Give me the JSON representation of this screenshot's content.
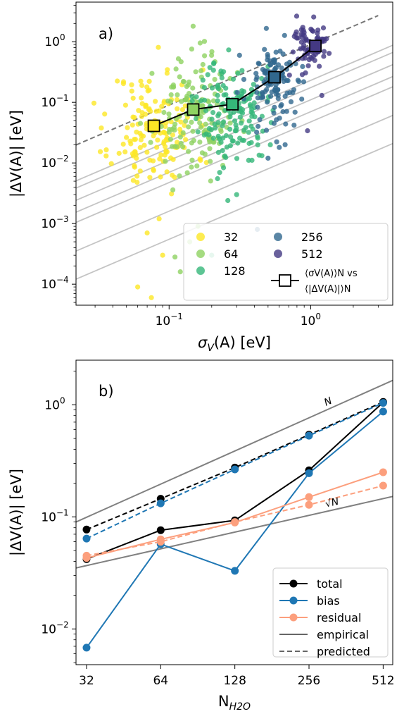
{
  "chart_data": [
    {
      "panel_label": "a)",
      "type": "scatter",
      "xlabel_parts": [
        "σ",
        "V",
        "(A) [eV]"
      ],
      "ylabel": "|ΔV(A)| [eV]",
      "xscale": "log",
      "yscale": "log",
      "xlim": [
        0.022,
        3.8
      ],
      "ylim": [
        4.5e-05,
        4.5
      ],
      "x_ticks": [
        {
          "value": 0.1,
          "base": "10",
          "exp": "−1"
        },
        {
          "value": 1,
          "base": "10",
          "exp": "0"
        }
      ],
      "y_ticks": [
        {
          "value": 0.0001,
          "base": "10",
          "exp": "−4"
        },
        {
          "value": 0.001,
          "base": "10",
          "exp": "−3"
        },
        {
          "value": 0.01,
          "base": "10",
          "exp": "−2"
        },
        {
          "value": 0.1,
          "base": "10",
          "exp": "−1"
        },
        {
          "value": 1,
          "base": "10",
          "exp": "0"
        }
      ],
      "grid": false,
      "reference_lines": {
        "color": "#c4c4c4",
        "slope": 1,
        "coefficients": [
          0.0055,
          0.016,
          0.0475,
          0.07,
          0.11,
          0.175,
          0.23
        ]
      },
      "predicted_line": {
        "color": "#777777",
        "dash": true,
        "coefficient": 0.9,
        "x_range": [
          0.022,
          3.0
        ]
      },
      "series": [
        {
          "name": "32",
          "color": "#fde725",
          "x_mean": 0.078,
          "x_spread": 0.15,
          "y_median": 0.035,
          "y_spread": 0.5,
          "count": 150,
          "seed": 11,
          "outliers": [
            [
              0.06,
              9e-05
            ],
            [
              0.075,
              6e-05
            ],
            [
              0.09,
              0.0003
            ],
            [
              0.07,
              0.0007
            ],
            [
              0.085,
              0.0012
            ]
          ]
        },
        {
          "name": "64",
          "color": "#8fd262",
          "x_mean": 0.15,
          "x_spread": 0.14,
          "y_median": 0.06,
          "y_spread": 0.48,
          "count": 150,
          "seed": 23,
          "outliers": [
            [
              0.12,
              0.00016
            ],
            [
              0.11,
              0.00028
            ],
            [
              0.14,
              0.0005
            ],
            [
              0.16,
              0.0009
            ]
          ]
        },
        {
          "name": "128",
          "color": "#35b779",
          "x_mean": 0.28,
          "x_spread": 0.12,
          "y_median": 0.07,
          "y_spread": 0.42,
          "count": 150,
          "seed": 37,
          "outliers": [
            [
              0.2,
              0.0003
            ],
            [
              0.26,
              0.0024
            ],
            [
              0.3,
              0.003
            ],
            [
              0.22,
              0.0055
            ]
          ]
        },
        {
          "name": "256",
          "color": "#31688e",
          "x_mean": 0.56,
          "x_spread": 0.1,
          "y_median": 0.22,
          "y_spread": 0.35,
          "count": 120,
          "seed": 53,
          "outliers": [
            [
              0.42,
              0.0008
            ],
            [
              0.5,
              0.012
            ],
            [
              0.6,
              0.018
            ],
            [
              0.66,
              0.02
            ]
          ]
        },
        {
          "name": "512",
          "color": "#443983",
          "x_mean": 1.0,
          "x_spread": 0.07,
          "y_median": 0.8,
          "y_spread": 0.22,
          "count": 80,
          "seed": 71,
          "outliers": [
            [
              0.95,
              0.034
            ],
            [
              1.2,
              0.13
            ]
          ]
        }
      ],
      "mean_series": {
        "name_line1": "⟨σV(A)⟩N vs",
        "name_line2": "⟨|ΔV(A)|⟩N",
        "x": [
          0.078,
          0.148,
          0.28,
          0.555,
          1.08
        ],
        "y": [
          0.041,
          0.076,
          0.093,
          0.26,
          0.85
        ]
      },
      "legend_position": "lower-right"
    },
    {
      "panel_label": "b)",
      "type": "line",
      "xlabel_parts": [
        "N",
        "H2O"
      ],
      "ylabel": "|ΔV(A)| [eV]",
      "xscale": "log",
      "yscale": "log",
      "xlim": [
        29,
        560
      ],
      "ylim": [
        0.0048,
        2.5
      ],
      "categories": [
        "32",
        "64",
        "128",
        "256",
        "512"
      ],
      "x": [
        32,
        64,
        128,
        256,
        512
      ],
      "y_ticks": [
        {
          "value": 0.01,
          "base": "10",
          "exp": "−2"
        },
        {
          "value": 0.1,
          "base": "10",
          "exp": "−1"
        },
        {
          "value": 1,
          "base": "10",
          "exp": "0"
        }
      ],
      "grid": false,
      "series": [
        {
          "name": "total",
          "color": "#000000",
          "kind": "empirical",
          "values": [
            0.042,
            0.076,
            0.093,
            0.26,
            1.05
          ]
        },
        {
          "name": "total",
          "color": "#000000",
          "kind": "predicted",
          "values": [
            0.077,
            0.145,
            0.275,
            0.54,
            1.06
          ]
        },
        {
          "name": "bias",
          "color": "#1f77b4",
          "kind": "empirical",
          "values": [
            0.0068,
            0.057,
            0.033,
            0.245,
            0.87
          ]
        },
        {
          "name": "bias",
          "color": "#1f77b4",
          "kind": "predicted",
          "values": [
            0.064,
            0.132,
            0.265,
            0.53,
            1.04
          ]
        },
        {
          "name": "residual",
          "color": "#fc9f7d",
          "kind": "empirical",
          "values": [
            0.043,
            0.063,
            0.089,
            0.15,
            0.25
          ]
        },
        {
          "name": "residual",
          "color": "#fc9f7d",
          "kind": "predicted",
          "values": [
            0.045,
            0.06,
            0.09,
            0.128,
            0.19
          ]
        }
      ],
      "scaling_lines": [
        {
          "label": "N",
          "color": "#808080",
          "x": [
            29,
            560
          ],
          "y": [
            0.09,
            1.65
          ]
        },
        {
          "label": "√N",
          "color": "#808080",
          "x": [
            29,
            560
          ],
          "y": [
            0.035,
            0.152
          ]
        }
      ],
      "legend": {
        "position": "lower-right",
        "entries": [
          {
            "label": "total",
            "color": "#000000",
            "style": "marker"
          },
          {
            "label": "bias",
            "color": "#1f77b4",
            "style": "marker"
          },
          {
            "label": "residual",
            "color": "#fc9f7d",
            "style": "marker"
          },
          {
            "label": "empirical",
            "color": "#666666",
            "style": "solid"
          },
          {
            "label": "predicted",
            "color": "#666666",
            "style": "dashed"
          }
        ]
      }
    }
  ]
}
